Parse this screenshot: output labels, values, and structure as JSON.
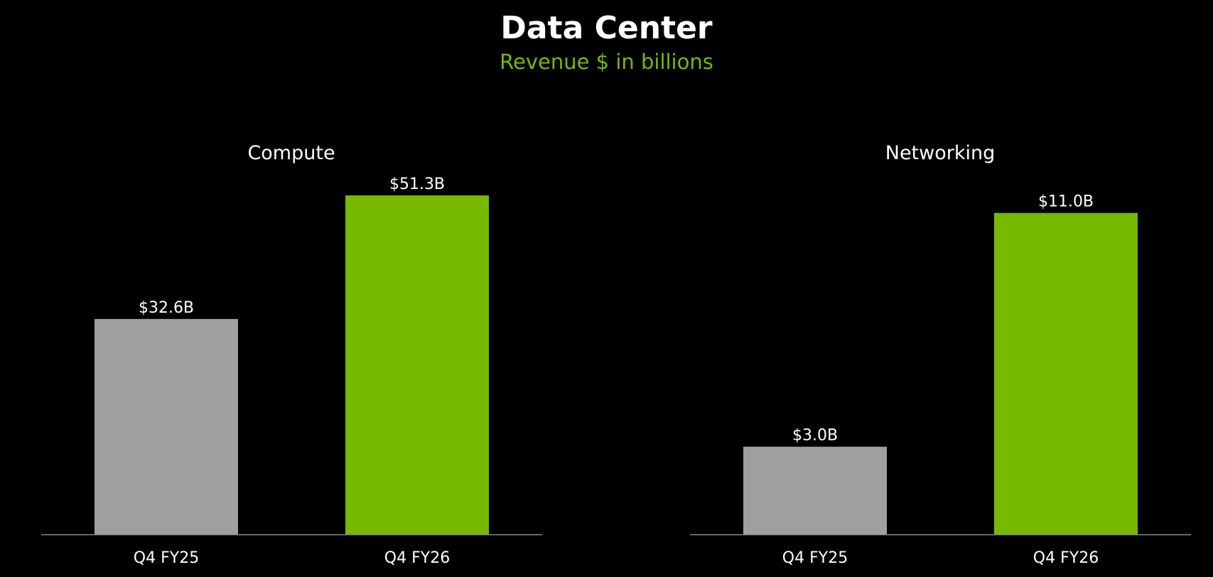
{
  "title": "Data Center",
  "subtitle": "Revenue $ in billions",
  "colors": {
    "background": "#000000",
    "prior_year_bar": "#a0a0a0",
    "current_year_bar": "#76b900",
    "baseline": "#8a8a8a",
    "text": "#ffffff",
    "accent": "#76b900"
  },
  "chart_data": [
    {
      "type": "bar",
      "title": "Compute",
      "categories": [
        "Q4 FY25",
        "Q4 FY26"
      ],
      "values": [
        32.6,
        51.3
      ],
      "data_labels": [
        "$32.6B",
        "$51.3B"
      ],
      "bar_colors": [
        "#a0a0a0",
        "#76b900"
      ],
      "xlabel": "",
      "ylabel": "",
      "ylim": [
        0,
        51.3
      ],
      "grid": false,
      "legend": "none"
    },
    {
      "type": "bar",
      "title": "Networking",
      "categories": [
        "Q4 FY25",
        "Q4 FY26"
      ],
      "values": [
        3.0,
        11.0
      ],
      "data_labels": [
        "$3.0B",
        "$11.0B"
      ],
      "bar_colors": [
        "#a0a0a0",
        "#76b900"
      ],
      "xlabel": "",
      "ylabel": "",
      "ylim": [
        0,
        11.6
      ],
      "grid": false,
      "legend": "none"
    }
  ]
}
